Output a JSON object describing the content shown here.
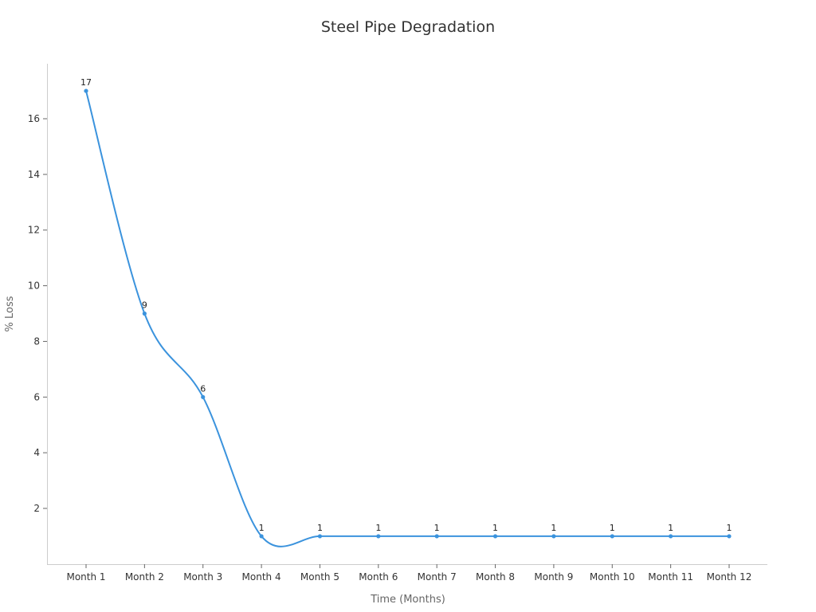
{
  "chart_data": {
    "type": "line",
    "title": "Steel Pipe Degradation",
    "xlabel": "Time (Months)",
    "ylabel": "% Loss",
    "categories": [
      "Month 1",
      "Month 2",
      "Month 3",
      "Month 4",
      "Month 5",
      "Month 6",
      "Month 7",
      "Month 8",
      "Month 9",
      "Month 10",
      "Month 11",
      "Month 12"
    ],
    "series": [
      {
        "values": [
          17,
          9,
          6,
          1,
          1,
          1,
          1,
          1,
          1,
          1,
          1,
          1
        ],
        "color": "#3b93dd"
      }
    ],
    "yticks": [
      2,
      4,
      6,
      8,
      10,
      12,
      14,
      16
    ],
    "ylim": [
      0,
      18
    ],
    "grid": false,
    "legend": "none",
    "data_labels": true,
    "curve": "smooth"
  }
}
